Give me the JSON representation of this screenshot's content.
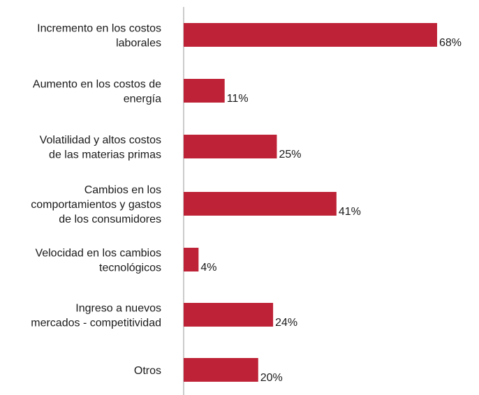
{
  "chart_data": {
    "type": "bar",
    "orientation": "horizontal",
    "categories": [
      [
        "Incremento en los costos",
        "laborales"
      ],
      [
        "Aumento en los costos de",
        "energía"
      ],
      [
        "Volatilidad y altos costos",
        "de las materias primas"
      ],
      [
        "Cambios en los",
        "comportamientos y gastos",
        "de los consumidores"
      ],
      [
        "Velocidad en los cambios",
        "tecnológicos"
      ],
      [
        "Ingreso a nuevos",
        "mercados - competitividad"
      ],
      [
        "Otros"
      ]
    ],
    "values": [
      68,
      11,
      25,
      41,
      4,
      24,
      20
    ],
    "value_labels": [
      "68%",
      "11%",
      "25%",
      "41%",
      "4%",
      "24%",
      "20%"
    ],
    "xlim": [
      0,
      68
    ],
    "bar_color": "#BE2236",
    "axis_color": "#999999",
    "grid": false,
    "legend": "none"
  }
}
